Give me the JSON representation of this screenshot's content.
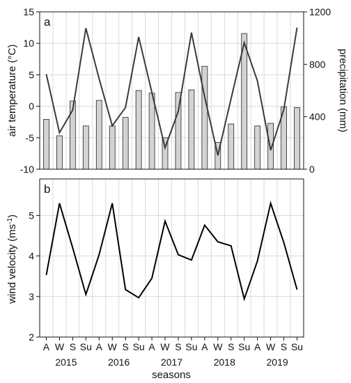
{
  "chart_data": [
    {
      "panel_label": "a",
      "type": "bar+line",
      "categories": [
        "A",
        "W",
        "S",
        "Su",
        "A",
        "W",
        "S",
        "Su",
        "A",
        "W",
        "S",
        "Su",
        "A",
        "W",
        "S",
        "Su",
        "A",
        "W",
        "S",
        "Su"
      ],
      "years": [
        "2015",
        "2016",
        "2017",
        "2018",
        "2019"
      ],
      "xlabel": "seasons",
      "ylabel_left": "air temperature (°C)",
      "ylabel_right": "precipitation (mm)",
      "ylim_left": [
        -10,
        15
      ],
      "ylim_right": [
        0,
        1200
      ],
      "yticks_left": [
        -10,
        -5,
        0,
        5,
        10,
        15
      ],
      "yticks_right": [
        0,
        400,
        800,
        1200
      ],
      "grid": true,
      "series": [
        {
          "kind": "bar",
          "axis": "right",
          "color": "#d3d3d3",
          "values": [
            380,
            255,
            520,
            330,
            525,
            330,
            395,
            600,
            580,
            240,
            585,
            605,
            785,
            205,
            345,
            1035,
            330,
            350,
            475,
            470
          ]
        },
        {
          "kind": "line",
          "axis": "left",
          "color": "#3a3a3a",
          "values": [
            5.1,
            -4.2,
            -0.6,
            12.4,
            4.4,
            -3.1,
            -0.2,
            11.0,
            2.2,
            -6.6,
            -0.8,
            11.7,
            1.5,
            -7.8,
            1.2,
            10.1,
            4.0,
            -7.0,
            -0.5,
            12.5
          ]
        }
      ]
    },
    {
      "panel_label": "b",
      "type": "line",
      "categories": [
        "A",
        "W",
        "S",
        "Su",
        "A",
        "W",
        "S",
        "Su",
        "A",
        "W",
        "S",
        "Su",
        "A",
        "W",
        "S",
        "Su",
        "A",
        "W",
        "S",
        "Su"
      ],
      "years": [
        "2015",
        "2016",
        "2017",
        "2018",
        "2019"
      ],
      "xlabel": "seasons",
      "ylabel": "wind velocity (ms⁻¹)",
      "ylim": [
        2,
        5.9
      ],
      "yticks": [
        2,
        3,
        4,
        5
      ],
      "grid": true,
      "series": [
        {
          "kind": "line",
          "color": "#000000",
          "values": [
            3.53,
            5.3,
            4.2,
            3.05,
            4.03,
            5.3,
            3.17,
            2.97,
            3.45,
            4.86,
            4.03,
            3.9,
            4.76,
            4.35,
            4.25,
            2.94,
            3.88,
            5.3,
            4.33,
            3.17
          ]
        }
      ]
    }
  ]
}
